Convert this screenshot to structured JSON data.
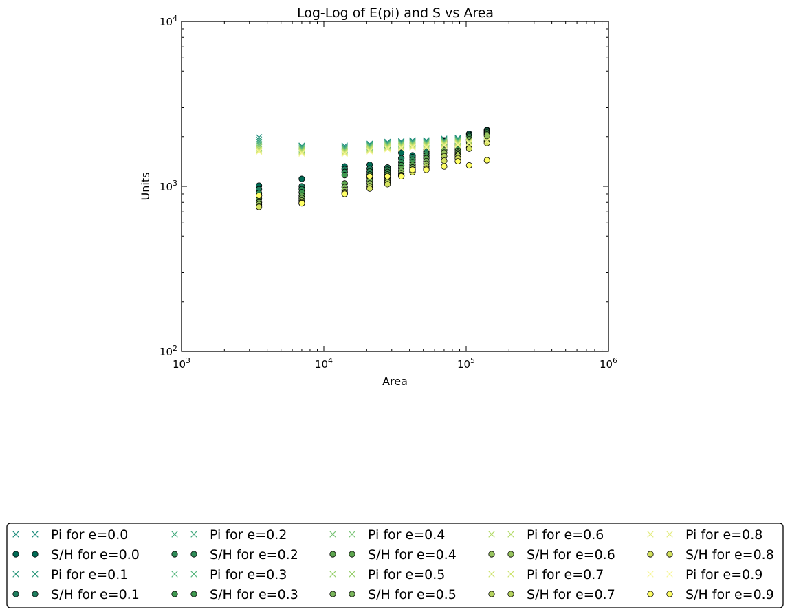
{
  "chart_data": {
    "type": "scatter",
    "title": "Log-Log of E(pi) and S vs Area",
    "xlabel": "Area",
    "ylabel": "Units",
    "xscale": "log",
    "yscale": "log",
    "xlim": [
      1000,
      1000000
    ],
    "ylim": [
      100,
      10000
    ],
    "x_ticks": [
      {
        "value": 1000,
        "base": "10",
        "exp": "3"
      },
      {
        "value": 10000,
        "base": "10",
        "exp": "4"
      },
      {
        "value": 100000,
        "base": "10",
        "exp": "5"
      },
      {
        "value": 1000000,
        "base": "10",
        "exp": "6"
      }
    ],
    "y_ticks": [
      {
        "value": 100,
        "base": "10",
        "exp": "2"
      },
      {
        "value": 1000,
        "base": "10",
        "exp": "3"
      },
      {
        "value": 10000,
        "base": "10",
        "exp": "4"
      }
    ],
    "grid": false,
    "legend": {
      "position": "bottom",
      "columns": 5
    },
    "x": [
      3500,
      7000,
      14000,
      21000,
      28000,
      35000,
      42000,
      52500,
      70000,
      87500,
      105000,
      140000
    ],
    "series": [
      {
        "name": "Pi for e=0.0",
        "marker": "x",
        "color": "#1a8a7a",
        "values": [
          1980,
          1760,
          1760,
          1810,
          1860,
          1880,
          1900,
          1900,
          1940,
          1960,
          2000,
          2050
        ]
      },
      {
        "name": "S/H for e=0.0",
        "marker": "o",
        "color": "#006b55",
        "values": [
          1010,
          1110,
          1320,
          1350,
          1740,
          1600,
          1540,
          1660,
          1900,
          1800,
          2080,
          2200
        ]
      },
      {
        "name": "Pi for e=0.1",
        "marker": "x",
        "color": "#2f9a7e",
        "values": [
          1920,
          1750,
          1730,
          1790,
          1840,
          1860,
          1880,
          1880,
          1920,
          1940,
          1980,
          2030
        ]
      },
      {
        "name": "S/H for e=0.1",
        "marker": "o",
        "color": "#1f7f5f",
        "values": [
          960,
          1000,
          1270,
          1280,
          1300,
          1480,
          1500,
          1620,
          1870,
          1760,
          2050,
          2180
        ]
      },
      {
        "name": "Pi for e=0.2",
        "marker": "x",
        "color": "#41a97c",
        "values": [
          1860,
          1730,
          1710,
          1770,
          1820,
          1840,
          1860,
          1860,
          1900,
          1920,
          1960,
          2010
        ]
      },
      {
        "name": "S/H for e=0.2",
        "marker": "o",
        "color": "#2e8b57",
        "values": [
          910,
          960,
          1220,
          1230,
          1260,
          1400,
          1450,
          1580,
          1830,
          1720,
          2010,
          2150
        ]
      },
      {
        "name": "Pi for e=0.3",
        "marker": "x",
        "color": "#57b67f",
        "values": [
          1800,
          1700,
          1690,
          1750,
          1800,
          1820,
          1840,
          1840,
          1880,
          1900,
          1940,
          1990
        ]
      },
      {
        "name": "S/H for e=0.3",
        "marker": "o",
        "color": "#3f9950",
        "values": [
          880,
          920,
          1170,
          1180,
          1220,
          1340,
          1400,
          1530,
          1780,
          1680,
          1970,
          2120
        ]
      },
      {
        "name": "Pi for e=0.4",
        "marker": "x",
        "color": "#78c374",
        "values": [
          1760,
          1680,
          1670,
          1730,
          1780,
          1800,
          1820,
          1820,
          1860,
          1880,
          1920,
          1970
        ]
      },
      {
        "name": "S/H for e=0.4",
        "marker": "o",
        "color": "#5ea54f",
        "values": [
          840,
          880,
          1040,
          1130,
          1180,
          1290,
          1350,
          1480,
          1730,
          1640,
          1930,
          2090
        ]
      },
      {
        "name": "Pi for e=0.5",
        "marker": "x",
        "color": "#96cf6b",
        "values": [
          1720,
          1660,
          1650,
          1710,
          1760,
          1780,
          1800,
          1800,
          1840,
          1860,
          1900,
          1950
        ]
      },
      {
        "name": "S/H for e=0.5",
        "marker": "o",
        "color": "#7ab55c",
        "values": [
          800,
          850,
          990,
          1080,
          1130,
          1240,
          1300,
          1420,
          1660,
          1600,
          1890,
          2060
        ]
      },
      {
        "name": "Pi for e=0.6",
        "marker": "x",
        "color": "#b3da69",
        "values": [
          1690,
          1640,
          1630,
          1690,
          1740,
          1760,
          1780,
          1780,
          1820,
          1840,
          1880,
          1930
        ]
      },
      {
        "name": "S/H for e=0.6",
        "marker": "o",
        "color": "#98c45f",
        "values": [
          780,
          820,
          950,
          1040,
          1090,
          1200,
          1260,
          1370,
          1600,
          1560,
          1850,
          2030
        ]
      },
      {
        "name": "Pi for e=0.7",
        "marker": "x",
        "color": "#cde36f",
        "values": [
          1660,
          1620,
          1610,
          1670,
          1720,
          1740,
          1760,
          1760,
          1800,
          1820,
          1860,
          1910
        ]
      },
      {
        "name": "S/H for e=0.7",
        "marker": "o",
        "color": "#b5d35e",
        "values": [
          760,
          800,
          920,
          1000,
          1060,
          1170,
          1230,
          1320,
          1520,
          1530,
          1720,
          1880
        ]
      },
      {
        "name": "Pi for e=0.8",
        "marker": "x",
        "color": "#e3ec80",
        "values": [
          1640,
          1600,
          1590,
          1650,
          1700,
          1720,
          1740,
          1740,
          1780,
          1800,
          1840,
          1890
        ]
      },
      {
        "name": "S/H for e=0.8",
        "marker": "o",
        "color": "#d4e25e",
        "values": [
          750,
          790,
          910,
          970,
          1030,
          1160,
          1220,
          1280,
          1430,
          1480,
          1690,
          1830
        ]
      },
      {
        "name": "Pi for e=0.9",
        "marker": "x",
        "color": "#f7f69a",
        "values": [
          1620,
          1580,
          1570,
          1630,
          1680,
          1700,
          1720,
          1720,
          1760,
          1780,
          1820,
          1870
        ]
      },
      {
        "name": "S/H for e=0.9",
        "marker": "o",
        "color": "#ffff66",
        "values": [
          880,
          790,
          900,
          1150,
          1150,
          1150,
          1260,
          1260,
          1320,
          1420,
          1340,
          1440
        ]
      }
    ]
  }
}
